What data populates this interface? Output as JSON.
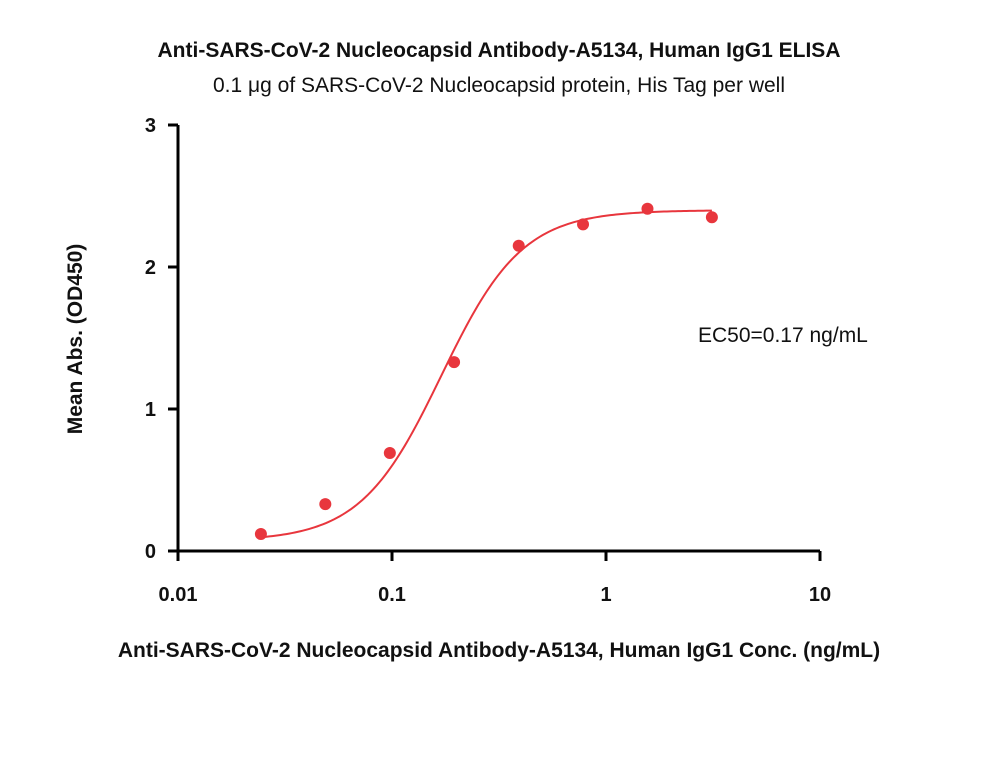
{
  "chart_data": {
    "type": "scatter",
    "title": "Anti-SARS-CoV-2 Nucleocapsid Antibody-A5134, Human IgG1 ELISA",
    "subtitle": "0.1 μg of SARS-CoV-2 Nucleocapsid protein, His Tag per well",
    "xlabel": "Anti-SARS-CoV-2 Nucleocapsid Antibody-A5134, Human IgG1 Conc. (ng/mL)",
    "ylabel": "Mean Abs. (OD450)",
    "xscale": "log",
    "xlim": [
      0.01,
      10
    ],
    "ylim": [
      0,
      3
    ],
    "xticks": [
      0.01,
      0.1,
      1,
      10
    ],
    "xtick_labels": [
      "0.01",
      "0.1",
      "1",
      "10"
    ],
    "yticks": [
      0,
      1,
      2,
      3
    ],
    "ytick_labels": [
      "0",
      "1",
      "2",
      "3"
    ],
    "grid": false,
    "legend": "none",
    "annotation": "EC50=0.17 ng/mL",
    "series": [
      {
        "color": "#e8363d",
        "x": [
          0.0244,
          0.0488,
          0.0977,
          0.195,
          0.391,
          0.781,
          1.5625,
          3.125
        ],
        "y": [
          0.12,
          0.33,
          0.69,
          1.33,
          2.15,
          2.3,
          2.41,
          2.35
        ],
        "fit": {
          "model": "4PL",
          "bottom": 0.07,
          "top": 2.4,
          "ec50": 0.17,
          "hill": 2.3
        }
      }
    ]
  }
}
